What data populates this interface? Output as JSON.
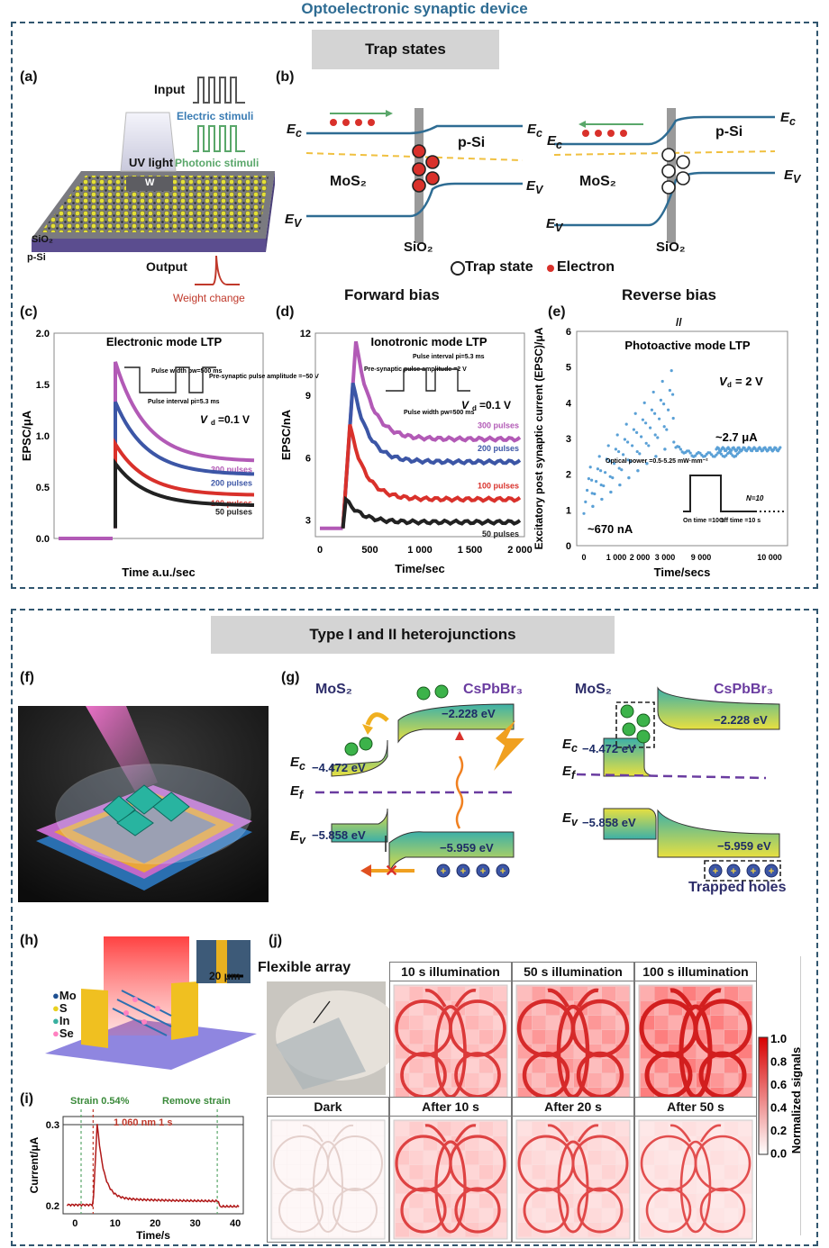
{
  "page": {
    "title": "Optoelectronic synaptic device",
    "section1": "Trap states",
    "section2": "Type I and II heterojunctions"
  },
  "panels": {
    "a": "(a)",
    "b": "(b)",
    "c": "(c)",
    "d": "(d)",
    "e": "(e)",
    "f": "(f)",
    "g": "(g)",
    "h": "(h)",
    "i": "(i)",
    "j": "(j)"
  },
  "panel_a": {
    "input": "Input",
    "electric": "Electric stimuli",
    "photonic": "Photonic stimuli",
    "uv": "UV light",
    "w": "W",
    "sio2": "SiO₂",
    "psi": "p-Si",
    "output": "Output",
    "weight": "Weight change"
  },
  "panel_b": {
    "ec": "E",
    "ev": "E",
    "mos2": "MoS₂",
    "psi": "p-Si",
    "sio2": "SiO₂",
    "trap_legend": "Trap state",
    "electron_legend": "Electron",
    "forward": "Forward bias",
    "reverse": "Reverse bias"
  },
  "colors": {
    "blue": "#2e6c93",
    "pink": "#b25ab6",
    "navy": "#3c56a6",
    "red": "#d9312b",
    "black": "#222222",
    "lightblue": "#5aa0d6",
    "green": "#5aa76a",
    "pinkred": "#e03a3a"
  },
  "chart_data": [
    {
      "id": "c",
      "type": "line",
      "title": "Electronic mode LTP",
      "xlabel": "Time a.u./sec",
      "ylabel": "EPSC/μA",
      "ylim": [
        0,
        2.0
      ],
      "yticks": [
        "0.0",
        "0.5",
        "1.0",
        "1.5",
        "2.0"
      ],
      "annotations": [
        "Pulse width pw=500 ms",
        "Pulse interval pi=5.3 ms",
        "Pre-synaptic pulse amplitude =−50 V",
        "V",
        "=0.1 V"
      ],
      "series": [
        {
          "name": "300 pulses",
          "peak": 1.72,
          "end": 0.75
        },
        {
          "name": "200 pulses",
          "peak": 1.33,
          "end": 0.62
        },
        {
          "name": "100 pulses",
          "peak": 0.92,
          "end": 0.42
        },
        {
          "name": "50 pulses",
          "peak": 0.73,
          "end": 0.32
        }
      ]
    },
    {
      "id": "d",
      "type": "line",
      "title": "Ionotronic mode LTP",
      "xlabel": "Time/sec",
      "ylabel": "EPSC/nA",
      "xlim": [
        0,
        2000
      ],
      "ylim": [
        2.2,
        12
      ],
      "xticks": [
        "0",
        "500",
        "1 000",
        "1 500",
        "2 000"
      ],
      "yticks": [
        "3",
        "6",
        "9",
        "12"
      ],
      "annotations": [
        "Pre-synaptic pulse amplitude =2 V",
        "Pulse interval pi=5.3 ms",
        "Pulse width pw=500 ms",
        "V",
        "=0.1 V"
      ],
      "series": [
        {
          "name": "300 pulses",
          "peak": 11.6,
          "end": 6.9
        },
        {
          "name": "200 pulses",
          "peak": 9.6,
          "end": 5.8
        },
        {
          "name": "100 pulses",
          "peak": 7.6,
          "end": 4.0
        },
        {
          "name": "50 pulses",
          "peak": 4.0,
          "end": 2.9
        }
      ]
    },
    {
      "id": "e",
      "type": "scatter",
      "title": "Photoactive mode LTP",
      "xlabel": "Time/secs",
      "ylabel": "Excitatory post synaptic current (EPSC)/μA",
      "ylim": [
        0,
        6
      ],
      "xticks": [
        "0",
        "1 000",
        "2 000",
        "3 000",
        "9 000",
        "10 000"
      ],
      "yticks": [
        "0",
        "1",
        "2",
        "3",
        "4",
        "5",
        "6"
      ],
      "annotations": [
        "V",
        "= 2 V",
        "~2.7 μA",
        "~670 nA",
        "Optical power =0.5-5.25 mW·mm⁻²",
        "On time =10 s",
        "Off time =10 s",
        "N=10"
      ],
      "steady": 2.7,
      "start": 0.67
    },
    {
      "id": "i",
      "type": "line",
      "xlabel": "Time/s",
      "ylabel": "Current/μA",
      "xlim": [
        -3,
        42
      ],
      "ylim": [
        0.19,
        0.31
      ],
      "xticks": [
        "0",
        "10",
        "20",
        "30",
        "40"
      ],
      "yticks": [
        "0.2",
        "0.3"
      ],
      "annotations": [
        "Strain 0.54%",
        "1 060 nm 1 s",
        "Remove strain"
      ]
    }
  ],
  "panel_g": {
    "mos2": "MoS₂",
    "cspb": "CsPbBr₃",
    "e1": "−2.228 eV",
    "e2": "−4.472 eV",
    "e3": "−5.858 eV",
    "e4": "−5.959 eV",
    "ec": "E",
    "ef": "E",
    "ev": "E",
    "trapped": "Trapped holes"
  },
  "panel_h": {
    "mo": "Mo",
    "s": "S",
    "in": "In",
    "se": "Se",
    "scale": "20 μm"
  },
  "panel_j": {
    "flex": "Flexible array",
    "top": [
      "10 s illumination",
      "50 s illumination",
      "100 s illumination"
    ],
    "bottom": [
      "Dark",
      "After 10 s",
      "After 20 s",
      "After 50 s"
    ],
    "cbar_label": "Normalized signals",
    "cbar_ticks": [
      "1.0",
      "0.8",
      "0.6",
      "0.4",
      "0.2",
      "0.0"
    ],
    "intensities_top": [
      0.55,
      0.8,
      1.0
    ],
    "intensities_bottom": [
      0.0,
      0.4,
      0.3,
      0.2
    ]
  }
}
